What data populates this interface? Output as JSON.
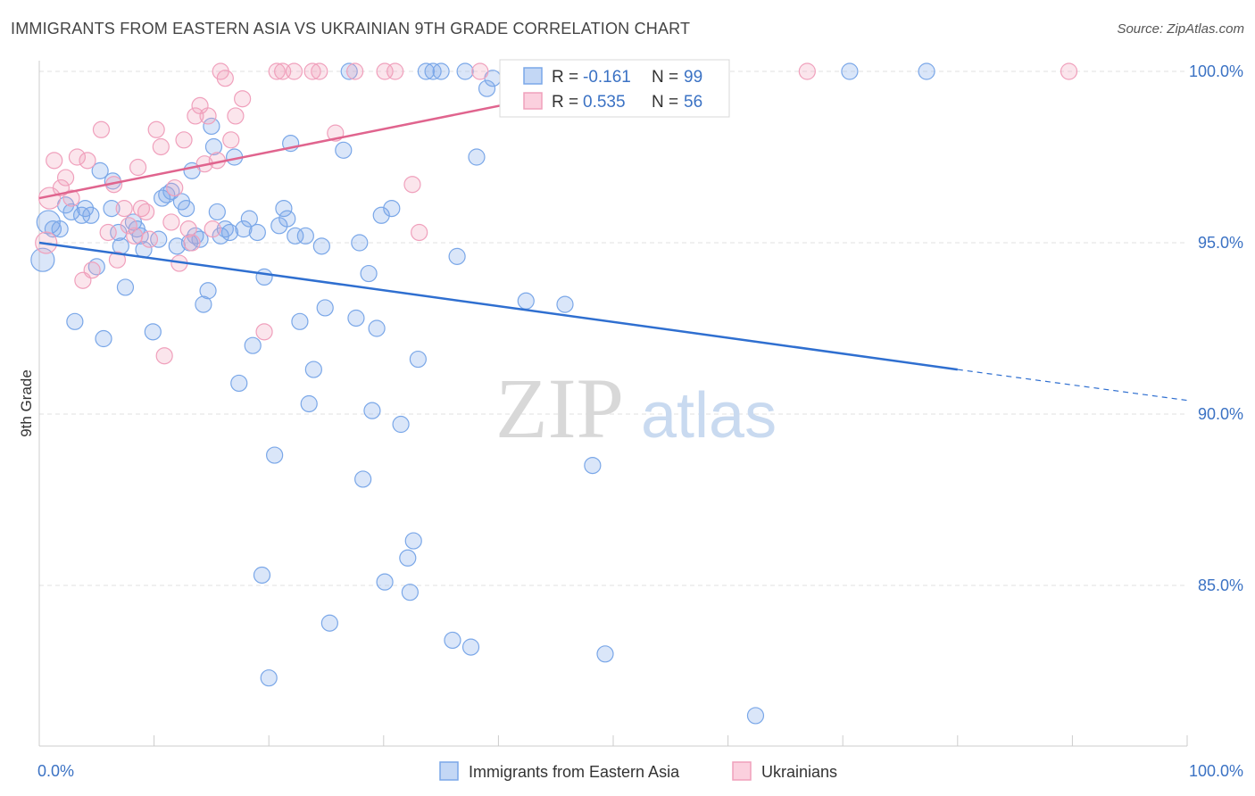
{
  "header": {
    "title": "IMMIGRANTS FROM EASTERN ASIA VS UKRAINIAN 9TH GRADE CORRELATION CHART",
    "source": "Source: ZipAtlas.com"
  },
  "watermark": {
    "zip": "ZIP",
    "atlas": "atlas"
  },
  "stats": [
    {
      "r_label": "R =",
      "r_value": "-0.161",
      "n_label": "N =",
      "n_value": "99",
      "color": "#7aa7e8"
    },
    {
      "r_label": "R =",
      "r_value": "0.535",
      "n_label": "N =",
      "n_value": "56",
      "color": "#f0a0bc"
    }
  ],
  "chart_data": {
    "type": "scatter",
    "title": "IMMIGRANTS FROM EASTERN ASIA VS UKRAINIAN 9TH GRADE CORRELATION CHART",
    "xlabel": "",
    "ylabel": "9th Grade",
    "xlim": [
      0,
      100
    ],
    "ylim": [
      80.0,
      101.0
    ],
    "y_ticks": [
      85.0,
      90.0,
      95.0,
      100.0
    ],
    "y_tick_labels": [
      "85.0%",
      "90.0%",
      "95.0%",
      "100.0%"
    ],
    "x_tick_labels": [
      "0.0%",
      "100.0%"
    ],
    "grid": true,
    "legend_position": "bottom",
    "series": [
      {
        "name": "Immigrants from Eastern Asia",
        "color": "#7aa7e8",
        "line_color": "#2f6fd0",
        "trend": {
          "x": [
            0,
            80
          ],
          "y": [
            95.0,
            91.3
          ],
          "dashed_to": [
            100,
            90.4
          ]
        },
        "points": [
          [
            0.3,
            94.5
          ],
          [
            0.8,
            95.6
          ],
          [
            1.2,
            95.4
          ],
          [
            1.8,
            95.4
          ],
          [
            2.3,
            96.1
          ],
          [
            2.8,
            95.9
          ],
          [
            3.1,
            92.7
          ],
          [
            3.7,
            95.8
          ],
          [
            4.0,
            96.0
          ],
          [
            4.5,
            95.8
          ],
          [
            5.0,
            94.3
          ],
          [
            5.3,
            97.1
          ],
          [
            5.6,
            92.2
          ],
          [
            6.3,
            96.0
          ],
          [
            6.4,
            96.8
          ],
          [
            6.9,
            95.3
          ],
          [
            7.1,
            94.9
          ],
          [
            7.5,
            93.7
          ],
          [
            8.2,
            95.6
          ],
          [
            8.5,
            95.4
          ],
          [
            8.8,
            95.2
          ],
          [
            9.1,
            94.8
          ],
          [
            9.9,
            92.4
          ],
          [
            10.4,
            95.1
          ],
          [
            10.7,
            96.3
          ],
          [
            11.1,
            96.4
          ],
          [
            11.5,
            96.5
          ],
          [
            12.0,
            94.9
          ],
          [
            12.4,
            96.2
          ],
          [
            12.8,
            96.0
          ],
          [
            13.1,
            95.0
          ],
          [
            13.3,
            97.1
          ],
          [
            13.6,
            95.2
          ],
          [
            14.0,
            95.1
          ],
          [
            14.3,
            93.2
          ],
          [
            14.7,
            93.6
          ],
          [
            15.0,
            98.4
          ],
          [
            15.2,
            97.8
          ],
          [
            15.5,
            95.9
          ],
          [
            15.8,
            95.2
          ],
          [
            16.2,
            95.4
          ],
          [
            16.6,
            95.3
          ],
          [
            17.0,
            97.5
          ],
          [
            17.4,
            90.9
          ],
          [
            17.8,
            95.4
          ],
          [
            18.3,
            95.7
          ],
          [
            18.6,
            92.0
          ],
          [
            19.0,
            95.3
          ],
          [
            19.4,
            85.3
          ],
          [
            19.6,
            94.0
          ],
          [
            20.0,
            82.3
          ],
          [
            20.5,
            88.8
          ],
          [
            20.9,
            95.5
          ],
          [
            21.3,
            96.0
          ],
          [
            21.6,
            95.7
          ],
          [
            21.9,
            97.9
          ],
          [
            22.3,
            95.2
          ],
          [
            22.7,
            92.7
          ],
          [
            23.2,
            95.2
          ],
          [
            23.5,
            90.3
          ],
          [
            23.9,
            91.3
          ],
          [
            24.6,
            94.9
          ],
          [
            24.9,
            93.1
          ],
          [
            25.3,
            83.9
          ],
          [
            26.5,
            97.7
          ],
          [
            27.0,
            100.0
          ],
          [
            27.6,
            92.8
          ],
          [
            27.9,
            95.0
          ],
          [
            28.2,
            88.1
          ],
          [
            28.7,
            94.1
          ],
          [
            29.0,
            90.1
          ],
          [
            29.4,
            92.5
          ],
          [
            29.8,
            95.8
          ],
          [
            30.1,
            85.1
          ],
          [
            30.7,
            96.0
          ],
          [
            31.5,
            89.7
          ],
          [
            32.1,
            85.8
          ],
          [
            32.3,
            84.8
          ],
          [
            32.6,
            86.3
          ],
          [
            33.0,
            91.6
          ],
          [
            33.7,
            100.0
          ],
          [
            34.3,
            100.0
          ],
          [
            36.0,
            83.4
          ],
          [
            36.4,
            94.6
          ],
          [
            37.1,
            100.0
          ],
          [
            37.6,
            83.2
          ],
          [
            38.1,
            97.5
          ],
          [
            39.5,
            99.8
          ],
          [
            41.6,
            100.0
          ],
          [
            42.4,
            93.3
          ],
          [
            45.8,
            93.2
          ],
          [
            48.2,
            88.5
          ],
          [
            49.3,
            83.0
          ],
          [
            55.3,
            100.0
          ],
          [
            62.4,
            81.2
          ],
          [
            70.6,
            100.0
          ],
          [
            77.3,
            100.0
          ],
          [
            39.0,
            99.5
          ],
          [
            35.0,
            100.0
          ]
        ]
      },
      {
        "name": "Ukrainians",
        "color": "#f0a0bc",
        "line_color": "#e0648e",
        "trend": {
          "x": [
            0,
            55
          ],
          "y": [
            96.3,
            100.0
          ]
        },
        "points": [
          [
            0.6,
            95.0
          ],
          [
            0.9,
            96.3
          ],
          [
            1.3,
            97.4
          ],
          [
            1.9,
            96.6
          ],
          [
            2.3,
            96.9
          ],
          [
            2.8,
            96.3
          ],
          [
            3.3,
            97.5
          ],
          [
            3.8,
            93.9
          ],
          [
            4.2,
            97.4
          ],
          [
            4.6,
            94.2
          ],
          [
            5.4,
            98.3
          ],
          [
            6.0,
            95.3
          ],
          [
            6.5,
            96.7
          ],
          [
            6.8,
            94.5
          ],
          [
            7.4,
            96.0
          ],
          [
            7.8,
            95.5
          ],
          [
            8.3,
            95.2
          ],
          [
            8.6,
            97.2
          ],
          [
            8.9,
            96.0
          ],
          [
            9.3,
            95.9
          ],
          [
            9.6,
            95.1
          ],
          [
            10.2,
            98.3
          ],
          [
            10.6,
            97.8
          ],
          [
            10.9,
            91.7
          ],
          [
            11.5,
            95.6
          ],
          [
            11.8,
            96.6
          ],
          [
            12.2,
            94.4
          ],
          [
            12.6,
            98.0
          ],
          [
            13.0,
            95.4
          ],
          [
            13.3,
            95.0
          ],
          [
            13.6,
            98.7
          ],
          [
            14.0,
            99.0
          ],
          [
            14.4,
            97.3
          ],
          [
            14.7,
            98.7
          ],
          [
            15.1,
            95.4
          ],
          [
            15.5,
            97.4
          ],
          [
            15.8,
            100.0
          ],
          [
            16.2,
            99.8
          ],
          [
            16.7,
            98.0
          ],
          [
            17.1,
            98.7
          ],
          [
            17.7,
            99.2
          ],
          [
            19.6,
            92.4
          ],
          [
            20.7,
            100.0
          ],
          [
            21.2,
            100.0
          ],
          [
            22.2,
            100.0
          ],
          [
            23.8,
            100.0
          ],
          [
            24.4,
            100.0
          ],
          [
            25.8,
            98.2
          ],
          [
            27.5,
            100.0
          ],
          [
            30.1,
            100.0
          ],
          [
            31.0,
            100.0
          ],
          [
            32.5,
            96.7
          ],
          [
            33.1,
            95.3
          ],
          [
            38.4,
            100.0
          ],
          [
            66.9,
            100.0
          ],
          [
            89.7,
            100.0
          ]
        ]
      }
    ]
  },
  "legend": {
    "items": [
      {
        "label": "Immigrants from Eastern Asia",
        "color": "#7aa7e8"
      },
      {
        "label": "Ukrainians",
        "color": "#f0a0bc"
      }
    ]
  }
}
